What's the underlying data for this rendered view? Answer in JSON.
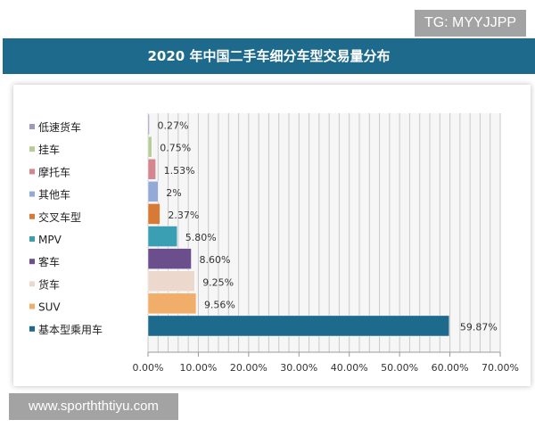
{
  "watermark_top": "TG: MYYJJPP",
  "watermark_bottom": "www.sporththtiyu.com",
  "chart_data": {
    "type": "bar",
    "orientation": "horizontal",
    "title": "2020 年中国二手车细分车型交易量分布",
    "categories": [
      "低速货车",
      "挂车",
      "摩托车",
      "其他车",
      "交叉车型",
      "MPV",
      "客车",
      "货车",
      "SUV",
      "基本型乘用车"
    ],
    "values": [
      0.27,
      0.75,
      1.53,
      2,
      2.37,
      5.8,
      8.6,
      9.25,
      9.56,
      59.87
    ],
    "data_labels": [
      "0.27%",
      "0.75%",
      "1.53%",
      "2%",
      "2.37%",
      "5.80%",
      "8.60%",
      "9.25%",
      "9.56%",
      "59.87%"
    ],
    "colors": [
      "#9b9bc0",
      "#b8cc98",
      "#d4868e",
      "#93a9d8",
      "#d87a36",
      "#3a9fb3",
      "#6a4f8c",
      "#ecd8cc",
      "#f1ae6a",
      "#1d6a8c"
    ],
    "xlim": [
      0,
      70
    ],
    "x_ticks": [
      "0.00%",
      "10.00%",
      "20.00%",
      "30.00%",
      "40.00%",
      "50.00%",
      "60.00%",
      "70.00%"
    ],
    "grid": true,
    "legend": "left"
  }
}
